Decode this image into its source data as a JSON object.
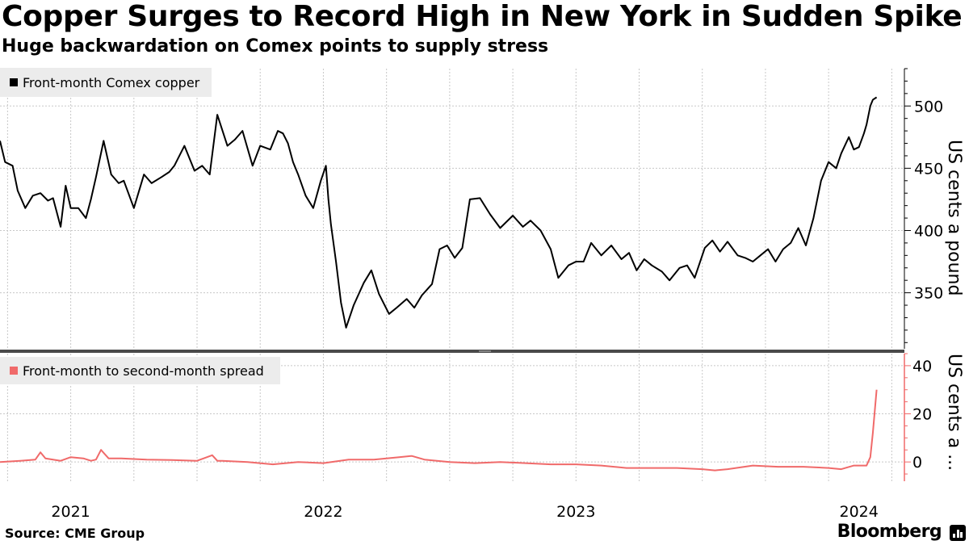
{
  "header": {
    "title": "Copper Surges to Record High in New York in Sudden Spike",
    "subtitle": "Huge backwardation on Comex points to supply stress"
  },
  "footer": {
    "source": "Source: CME Group",
    "brand": "Bloomberg",
    "brand_icon": "bar-chart-icon"
  },
  "colors": {
    "copper_line": "#000000",
    "spread_line": "#f06a6a",
    "grid": "#c8c8c8",
    "divider": "#4a4a4a",
    "legend_bg": "#ececec"
  },
  "chart_data": [
    {
      "type": "line",
      "title": "Copper Surges to Record High in New York in Sudden Spike",
      "legend": "Front-month Comex copper",
      "ylabel": "US cents a pound",
      "xlabel": "",
      "xlim": [
        2020.72,
        2024.3
      ],
      "ylim": [
        305,
        530
      ],
      "yticks": [
        350,
        400,
        450,
        500
      ],
      "xticks": [
        2021,
        2022,
        2023,
        2024
      ],
      "xtick_labels": [
        "2021",
        "2022",
        "2023",
        "2024"
      ],
      "grid": true,
      "x": [
        2020.72,
        2020.74,
        2020.77,
        2020.79,
        2020.82,
        2020.85,
        2020.88,
        2020.91,
        2020.93,
        2020.96,
        2020.98,
        2021.0,
        2021.03,
        2021.06,
        2021.08,
        2021.1,
        2021.13,
        2021.16,
        2021.19,
        2021.21,
        2021.25,
        2021.29,
        2021.32,
        2021.36,
        2021.39,
        2021.41,
        2021.45,
        2021.49,
        2021.52,
        2021.55,
        2021.58,
        2021.62,
        2021.65,
        2021.68,
        2021.72,
        2021.75,
        2021.79,
        2021.82,
        2021.84,
        2021.86,
        2021.88,
        2021.9,
        2021.93,
        2021.96,
        2021.99,
        2022.01,
        2022.02,
        2022.03,
        2022.05,
        2022.07,
        2022.09,
        2022.12,
        2022.16,
        2022.19,
        2022.22,
        2022.26,
        2022.29,
        2022.33,
        2022.36,
        2022.39,
        2022.43,
        2022.46,
        2022.49,
        2022.52,
        2022.55,
        2022.58,
        2022.62,
        2022.66,
        2022.7,
        2022.75,
        2022.79,
        2022.82,
        2022.86,
        2022.9,
        2022.93,
        2022.97,
        2023.0,
        2023.03,
        2023.06,
        2023.1,
        2023.14,
        2023.18,
        2023.21,
        2023.24,
        2023.27,
        2023.3,
        2023.34,
        2023.37,
        2023.41,
        2023.44,
        2023.47,
        2023.51,
        2023.54,
        2023.57,
        2023.6,
        2023.64,
        2023.67,
        2023.7,
        2023.73,
        2023.76,
        2023.79,
        2023.82,
        2023.85,
        2023.88,
        2023.91,
        2023.94,
        2023.97,
        2024.0,
        2024.03,
        2024.05,
        2024.08,
        2024.1,
        2024.12,
        2024.14,
        2024.15,
        2024.165,
        2024.175,
        2024.19
      ],
      "values": [
        472,
        455,
        452,
        432,
        418,
        428,
        430,
        424,
        426,
        403,
        436,
        418,
        418,
        410,
        425,
        443,
        472,
        445,
        438,
        440,
        418,
        445,
        438,
        443,
        447,
        452,
        468,
        448,
        452,
        445,
        493,
        468,
        473,
        480,
        452,
        468,
        465,
        480,
        478,
        470,
        455,
        445,
        428,
        418,
        440,
        452,
        425,
        405,
        375,
        342,
        322,
        340,
        358,
        368,
        349,
        333,
        338,
        345,
        338,
        348,
        357,
        385,
        388,
        378,
        386,
        425,
        426,
        413,
        402,
        412,
        403,
        408,
        400,
        385,
        362,
        372,
        375,
        375,
        390,
        380,
        388,
        377,
        382,
        368,
        377,
        372,
        367,
        360,
        370,
        372,
        362,
        386,
        392,
        383,
        391,
        380,
        378,
        375,
        380,
        385,
        375,
        385,
        390,
        402,
        388,
        410,
        440,
        455,
        450,
        462,
        475,
        465,
        467,
        478,
        485,
        500,
        505,
        507
      ]
    },
    {
      "type": "line",
      "legend": "Front-month to second-month spread",
      "ylabel": "US cents a ...",
      "xlabel": "",
      "xlim": [
        2020.72,
        2024.3
      ],
      "ylim": [
        -8,
        45
      ],
      "yticks": [
        0,
        20,
        40
      ],
      "grid": true,
      "x": [
        2020.72,
        2020.8,
        2020.86,
        2020.88,
        2020.9,
        2020.96,
        2021.0,
        2021.05,
        2021.08,
        2021.1,
        2021.12,
        2021.15,
        2021.2,
        2021.3,
        2021.4,
        2021.5,
        2021.56,
        2021.58,
        2021.6,
        2021.7,
        2021.8,
        2021.9,
        2022.0,
        2022.1,
        2022.2,
        2022.3,
        2022.35,
        2022.4,
        2022.5,
        2022.6,
        2022.7,
        2022.8,
        2022.9,
        2023.0,
        2023.1,
        2023.2,
        2023.3,
        2023.4,
        2023.5,
        2023.55,
        2023.6,
        2023.7,
        2023.8,
        2023.9,
        2024.0,
        2024.05,
        2024.1,
        2024.13,
        2024.15,
        2024.165,
        2024.175,
        2024.19
      ],
      "values": [
        0,
        0.5,
        1,
        4,
        1.5,
        0.5,
        2,
        1.5,
        0.5,
        1,
        5,
        1.5,
        1.5,
        1,
        0.8,
        0.5,
        2.8,
        0.5,
        0.5,
        0,
        -1,
        0,
        -0.5,
        1,
        1,
        2,
        2.5,
        1,
        0,
        -0.5,
        0,
        -0.5,
        -1,
        -1,
        -1.5,
        -2.5,
        -2.5,
        -2.5,
        -3,
        -3.5,
        -3,
        -1.5,
        -2,
        -2,
        -2.5,
        -3,
        -1.5,
        -1.5,
        -1.5,
        2,
        12,
        30
      ]
    }
  ]
}
